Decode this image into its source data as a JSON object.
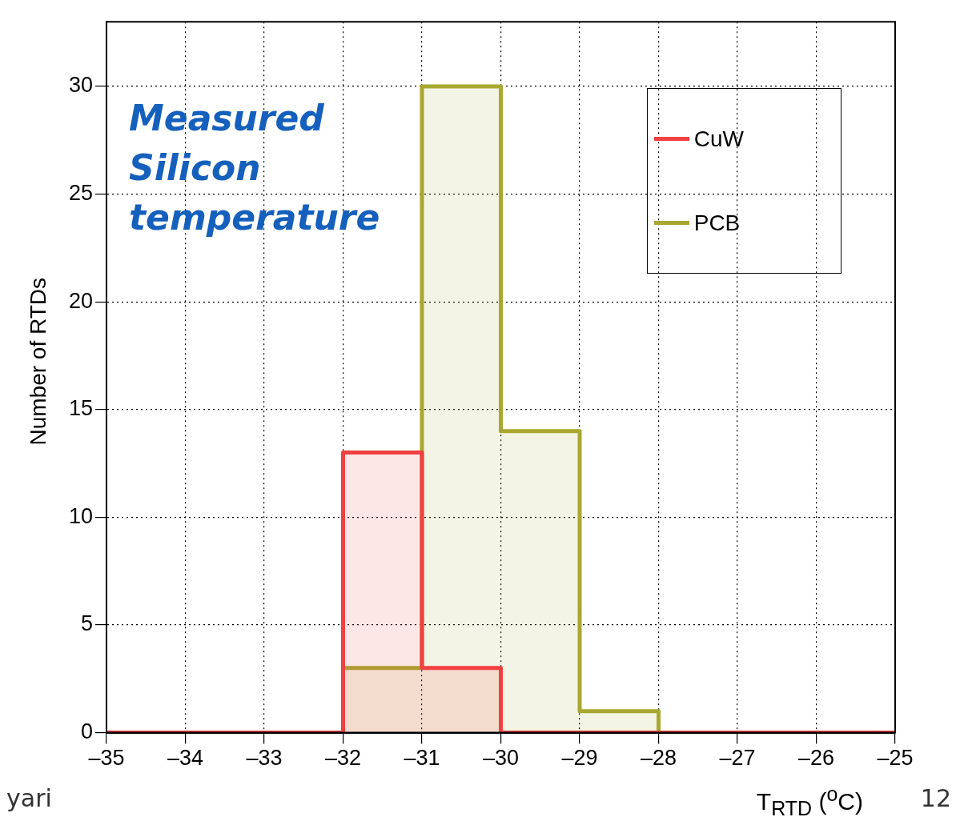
{
  "chart_data": {
    "type": "histogram",
    "xlabel": "T$_{RTD}$ ($^{o}$C)",
    "ylabel": "Number of RTDs",
    "bins": [
      -35,
      -34,
      -33,
      -32,
      -31,
      -30,
      -29,
      -28,
      -27,
      -26,
      -25
    ],
    "series": [
      {
        "name": "CuW",
        "color": "#f04040",
        "values": [
          0,
          0,
          0,
          13,
          3,
          0,
          0,
          0,
          0,
          0
        ]
      },
      {
        "name": "PCB",
        "color": "#a8a830",
        "values": [
          0,
          0,
          0,
          3,
          30,
          14,
          1,
          0,
          0,
          0
        ]
      }
    ],
    "xlim": [
      -35,
      -25
    ],
    "xticks": [
      {
        "value": -35,
        "label": "–35"
      },
      {
        "value": -34,
        "label": "–34"
      },
      {
        "value": -33,
        "label": "–33"
      },
      {
        "value": -32,
        "label": "–32"
      },
      {
        "value": -31,
        "label": "–31"
      },
      {
        "value": -30,
        "label": "–30"
      },
      {
        "value": -29,
        "label": "–29"
      },
      {
        "value": -28,
        "label": "–28"
      },
      {
        "value": -27,
        "label": "–27"
      },
      {
        "value": -26,
        "label": "–26"
      },
      {
        "value": -25,
        "label": "–25"
      }
    ],
    "ylim": [
      0,
      33
    ],
    "yticks": [
      0,
      5,
      10,
      15,
      20,
      25,
      30
    ],
    "grid": true,
    "legend": "top right",
    "annotations": [
      "Measured Silicon temperature",
      "yari",
      "12"
    ]
  }
}
